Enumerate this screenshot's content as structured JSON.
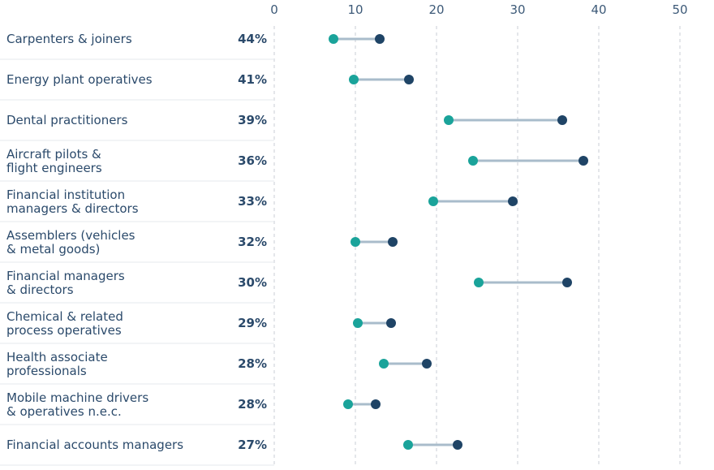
{
  "chart_data": {
    "type": "dumbbell",
    "x_ticks": [
      0,
      10,
      20,
      30,
      40,
      50
    ],
    "xlim": [
      0,
      50
    ],
    "grid": "vertical dashed",
    "colors": {
      "start": "#1aa39a",
      "end": "#1f4466",
      "connector": "#a9bccb",
      "text": "#2b4a6b"
    },
    "rows": [
      {
        "lines": [
          "Carpenters & joiners"
        ],
        "pct": "44%",
        "start": 7.3,
        "end": 13.0
      },
      {
        "lines": [
          "Energy plant operatives"
        ],
        "pct": "41%",
        "start": 9.8,
        "end": 16.6
      },
      {
        "lines": [
          "Dental practitioners"
        ],
        "pct": "39%",
        "start": 21.5,
        "end": 35.5
      },
      {
        "lines": [
          "Aircraft pilots &",
          "flight engineers"
        ],
        "pct": "36%",
        "start": 24.5,
        "end": 38.1
      },
      {
        "lines": [
          "Financial institution",
          "managers & directors"
        ],
        "pct": "33%",
        "start": 19.6,
        "end": 29.4
      },
      {
        "lines": [
          "Assemblers (vehicles",
          "& metal goods)"
        ],
        "pct": "32%",
        "start": 10.0,
        "end": 14.6
      },
      {
        "lines": [
          "Financial managers",
          "& directors"
        ],
        "pct": "30%",
        "start": 25.2,
        "end": 36.1
      },
      {
        "lines": [
          "Chemical & related",
          "process operatives"
        ],
        "pct": "29%",
        "start": 10.3,
        "end": 14.4
      },
      {
        "lines": [
          "Health associate",
          "professionals"
        ],
        "pct": "28%",
        "start": 13.5,
        "end": 18.8
      },
      {
        "lines": [
          "Mobile machine drivers",
          "& operatives n.e.c."
        ],
        "pct": "28%",
        "start": 9.1,
        "end": 12.5
      },
      {
        "lines": [
          "Financial accounts managers"
        ],
        "pct": "27%",
        "start": 16.5,
        "end": 22.6
      }
    ]
  }
}
